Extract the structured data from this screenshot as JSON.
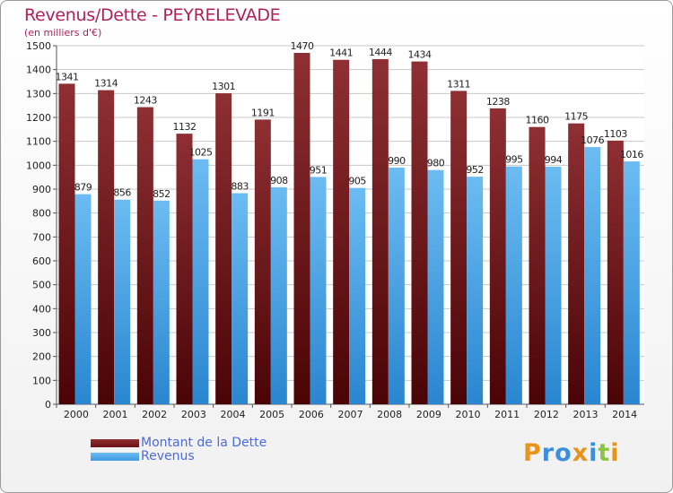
{
  "header": {
    "title": "Revenus/Dette - PEYRELEVADE",
    "subtitle": "(en milliers d'€)"
  },
  "brand": {
    "text": "Proxiti",
    "letter_colors": [
      "#e8941a",
      "#3c8fd8",
      "#3c8fd8",
      "#e8941a",
      "#3c8fd8",
      "#8cc63f",
      "#e8941a"
    ]
  },
  "colors": {
    "dette": "#6b1013",
    "revenus": "#3e9ae2",
    "grid": "#c8c8c8"
  },
  "chart_data": {
    "type": "bar",
    "title": "Revenus/Dette - PEYRELEVADE",
    "ylabel": "(en milliers d'€)",
    "ylim": [
      0,
      1500
    ],
    "yticks": [
      0,
      100,
      200,
      300,
      400,
      500,
      600,
      700,
      800,
      900,
      1000,
      1100,
      1200,
      1300,
      1400,
      1500
    ],
    "grid": true,
    "legend_position": "bottom-left",
    "categories": [
      "2000",
      "2001",
      "2002",
      "2003",
      "2004",
      "2005",
      "2006",
      "2007",
      "2008",
      "2009",
      "2010",
      "2011",
      "2012",
      "2013",
      "2014"
    ],
    "series": [
      {
        "name": "Montant de la Dette",
        "values": [
          1341,
          1314,
          1243,
          1132,
          1301,
          1191,
          1470,
          1441,
          1444,
          1434,
          1311,
          1238,
          1160,
          1175,
          1103
        ]
      },
      {
        "name": "Revenus",
        "values": [
          879,
          856,
          852,
          1025,
          883,
          908,
          951,
          905,
          990,
          980,
          952,
          995,
          994,
          1076,
          1016
        ]
      }
    ]
  }
}
